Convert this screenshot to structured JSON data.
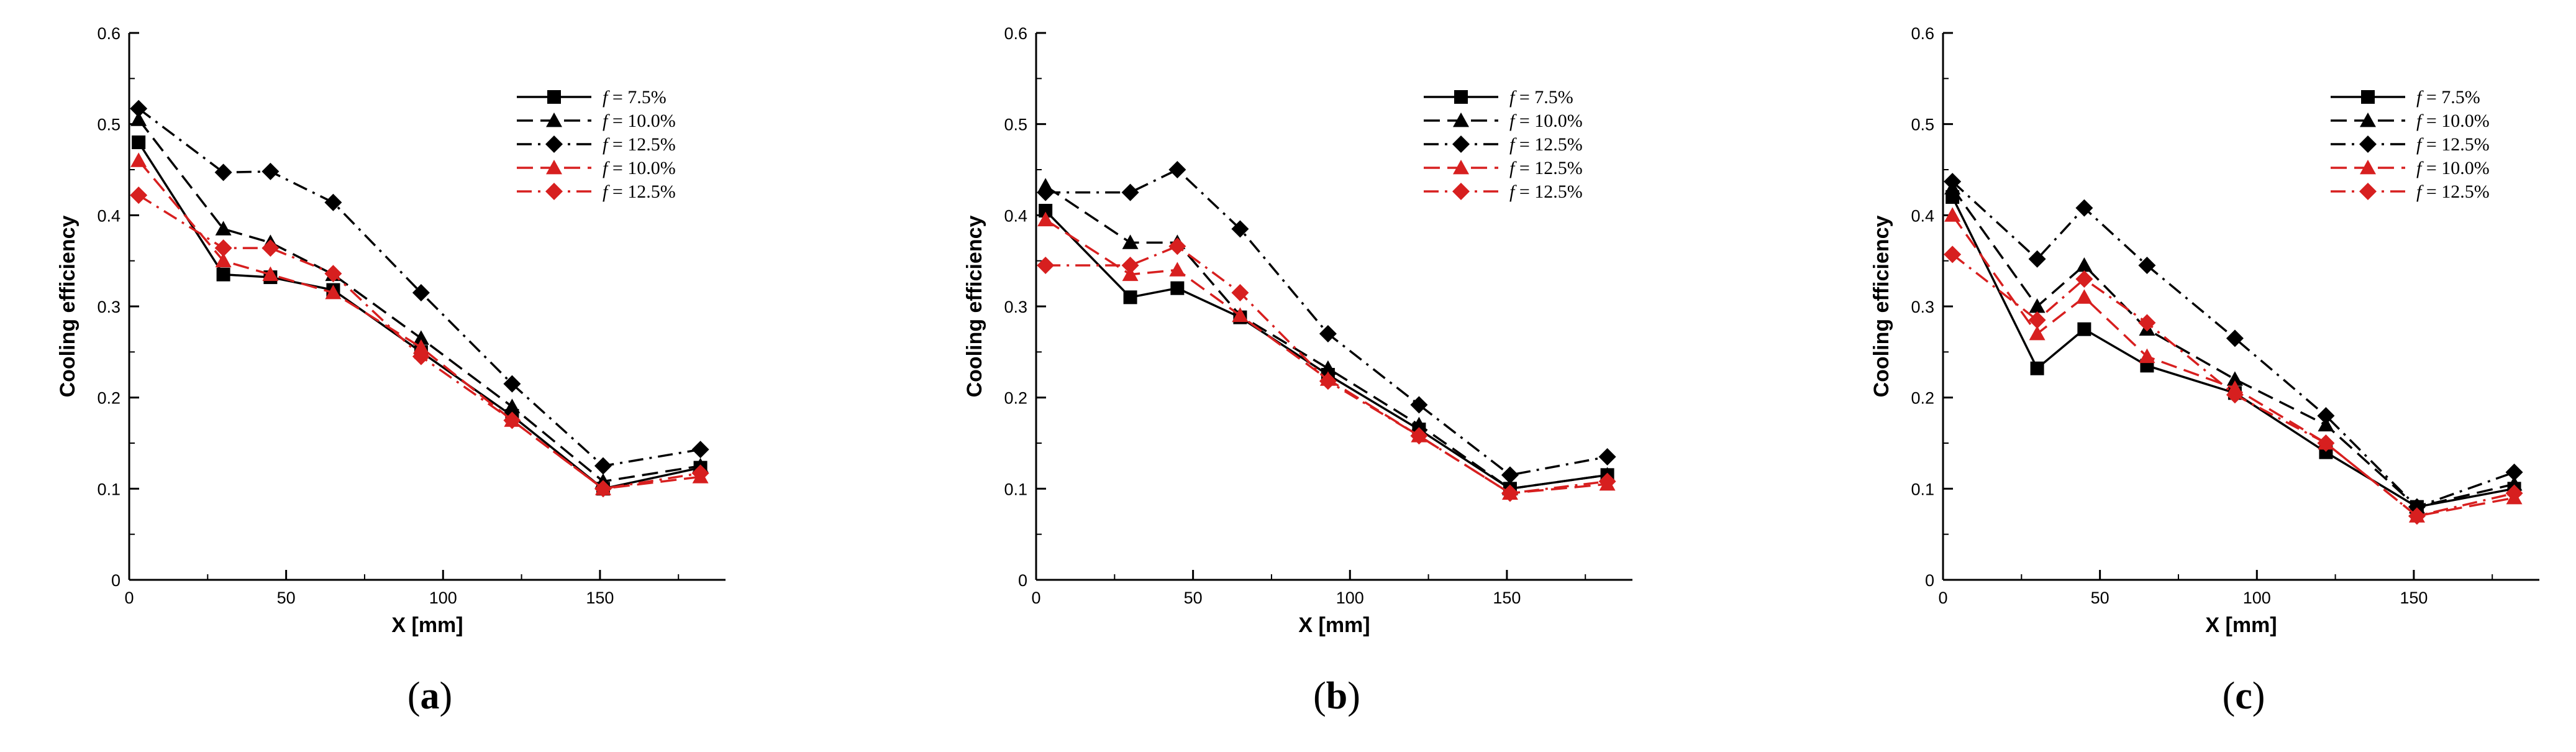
{
  "chart_data": [
    {
      "type": "line",
      "panel_label": "a",
      "xlabel": "X [mm]",
      "ylabel": "Cooling efficiency",
      "xlim": [
        0,
        190
      ],
      "ylim": [
        0,
        0.6
      ],
      "xticks": [
        0,
        50,
        100,
        150
      ],
      "yticks": [
        0,
        0.1,
        0.2,
        0.3,
        0.4,
        0.5,
        0.6
      ],
      "legend_position": "top-right",
      "x": [
        3,
        30,
        45,
        65,
        93,
        122,
        151,
        182
      ],
      "series": [
        {
          "name_prefix": "f",
          "name_suffix": " = 7.5%",
          "color": "#000000",
          "dash": "solid",
          "marker": "square",
          "values": [
            0.48,
            0.335,
            0.332,
            0.318,
            0.25,
            0.18,
            0.1,
            0.123
          ]
        },
        {
          "name_prefix": "f",
          "name_suffix": " = 10.0%",
          "color": "#000000",
          "dash": "dashed",
          "marker": "triangle",
          "values": [
            0.505,
            0.385,
            0.37,
            0.335,
            0.265,
            0.19,
            0.108,
            0.125
          ]
        },
        {
          "name_prefix": "f",
          "name_suffix": " = 12.5%",
          "color": "#000000",
          "dash": "dashdot",
          "marker": "diamond",
          "values": [
            0.517,
            0.447,
            0.448,
            0.414,
            0.315,
            0.215,
            0.125,
            0.143
          ]
        },
        {
          "name_prefix": "f",
          "name_suffix": " = 10.0%",
          "color": "#d71f1f",
          "dash": "dashed",
          "marker": "triangle",
          "values": [
            0.46,
            0.35,
            0.335,
            0.315,
            0.255,
            0.175,
            0.1,
            0.113
          ]
        },
        {
          "name_prefix": "f",
          "name_suffix": " = 12.5%",
          "color": "#d71f1f",
          "dash": "dashdot",
          "marker": "diamond",
          "values": [
            0.422,
            0.364,
            0.364,
            0.336,
            0.245,
            0.175,
            0.1,
            0.117
          ]
        }
      ]
    },
    {
      "type": "line",
      "panel_label": "b",
      "xlabel": "X [mm]",
      "ylabel": "Cooling efficiency",
      "xlim": [
        0,
        190
      ],
      "ylim": [
        0,
        0.6
      ],
      "xticks": [
        0,
        50,
        100,
        150
      ],
      "yticks": [
        0,
        0.1,
        0.2,
        0.3,
        0.4,
        0.5,
        0.6
      ],
      "legend_position": "top-right",
      "x": [
        3,
        30,
        45,
        65,
        93,
        122,
        151,
        182
      ],
      "series": [
        {
          "name_prefix": "f",
          "name_suffix": " = 7.5%",
          "color": "#000000",
          "dash": "solid",
          "marker": "square",
          "values": [
            0.405,
            0.31,
            0.32,
            0.288,
            0.225,
            0.165,
            0.1,
            0.115
          ]
        },
        {
          "name_prefix": "f",
          "name_suffix": " = 10.0%",
          "color": "#000000",
          "dash": "dashed",
          "marker": "triangle",
          "values": [
            0.432,
            0.37,
            0.37,
            0.29,
            0.232,
            0.17,
            0.1,
            0.115
          ]
        },
        {
          "name_prefix": "f",
          "name_suffix": " = 12.5%",
          "color": "#000000",
          "dash": "dashdot",
          "marker": "diamond",
          "values": [
            0.425,
            0.425,
            0.45,
            0.385,
            0.27,
            0.192,
            0.115,
            0.135
          ]
        },
        {
          "name_prefix": "f",
          "name_suffix": " = 12.5%",
          "color": "#d71f1f",
          "dash": "dashed",
          "marker": "triangle",
          "values": [
            0.395,
            0.335,
            0.34,
            0.29,
            0.22,
            0.158,
            0.095,
            0.105
          ]
        },
        {
          "name_prefix": "f",
          "name_suffix": " = 12.5%",
          "color": "#d71f1f",
          "dash": "dashdot",
          "marker": "diamond",
          "values": [
            0.345,
            0.345,
            0.366,
            0.315,
            0.218,
            0.158,
            0.095,
            0.108
          ]
        }
      ]
    },
    {
      "type": "line",
      "panel_label": "c",
      "xlabel": "X [mm]",
      "ylabel": "Cooling efficiency",
      "xlim": [
        0,
        190
      ],
      "ylim": [
        0,
        0.6
      ],
      "xticks": [
        0,
        50,
        100,
        150
      ],
      "yticks": [
        0,
        0.1,
        0.2,
        0.3,
        0.4,
        0.5,
        0.6
      ],
      "legend_position": "top-right",
      "x": [
        3,
        30,
        45,
        65,
        93,
        122,
        151,
        182
      ],
      "series": [
        {
          "name_prefix": "f",
          "name_suffix": " = 7.5%",
          "color": "#000000",
          "dash": "solid",
          "marker": "square",
          "values": [
            0.42,
            0.232,
            0.275,
            0.235,
            0.205,
            0.14,
            0.08,
            0.1
          ]
        },
        {
          "name_prefix": "f",
          "name_suffix": " = 10.0%",
          "color": "#000000",
          "dash": "dashed",
          "marker": "triangle",
          "values": [
            0.43,
            0.3,
            0.345,
            0.275,
            0.22,
            0.17,
            0.08,
            0.105
          ]
        },
        {
          "name_prefix": "f",
          "name_suffix": " = 12.5%",
          "color": "#000000",
          "dash": "dashdot",
          "marker": "diamond",
          "values": [
            0.437,
            0.352,
            0.408,
            0.345,
            0.265,
            0.18,
            0.08,
            0.118
          ]
        },
        {
          "name_prefix": "f",
          "name_suffix": " = 10.0%",
          "color": "#d71f1f",
          "dash": "dashed",
          "marker": "triangle",
          "values": [
            0.4,
            0.27,
            0.31,
            0.245,
            0.21,
            0.15,
            0.07,
            0.09
          ]
        },
        {
          "name_prefix": "f",
          "name_suffix": " = 12.5%",
          "color": "#d71f1f",
          "dash": "dashdot",
          "marker": "diamond",
          "values": [
            0.357,
            0.285,
            0.33,
            0.282,
            0.203,
            0.15,
            0.07,
            0.095
          ]
        }
      ]
    }
  ]
}
